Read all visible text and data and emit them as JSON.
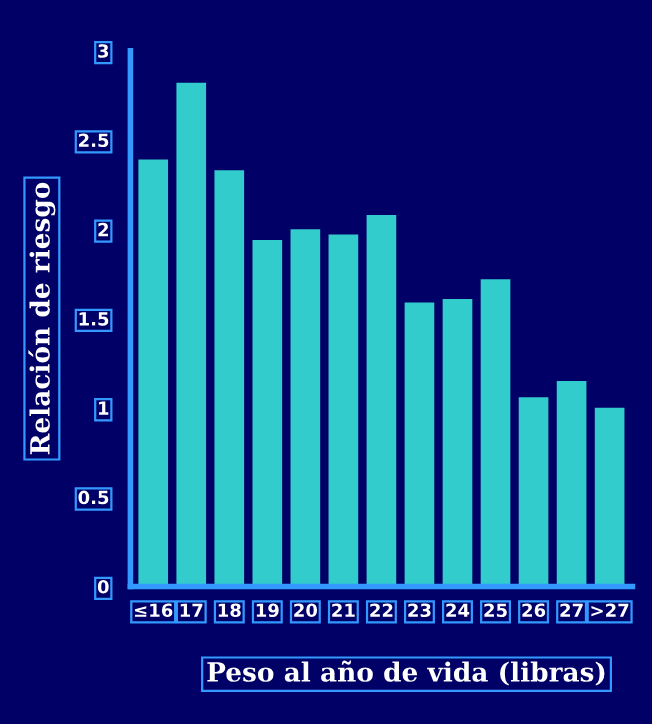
{
  "chart_data": {
    "type": "bar",
    "xlabel": "Peso al año de vida (libras)",
    "ylabel": "Relación de riesgo",
    "categories": [
      "≤16",
      "17",
      "18",
      "19",
      "20",
      "21",
      "22",
      "23",
      "24",
      "25",
      "26",
      "27",
      ">27"
    ],
    "values": [
      2.39,
      2.82,
      2.33,
      1.94,
      2.0,
      1.97,
      2.08,
      1.59,
      1.61,
      1.72,
      1.06,
      1.15,
      1.0
    ],
    "color": "#33cccc",
    "ylim": [
      0,
      3
    ],
    "yticks": [
      0,
      0.5,
      1,
      1.5,
      2,
      2.5,
      3
    ],
    "grid": false
  }
}
